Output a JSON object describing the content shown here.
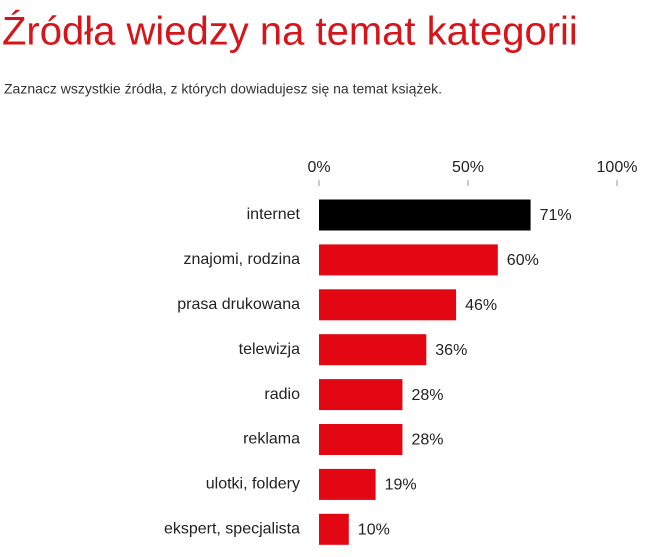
{
  "chart_data": {
    "type": "barh",
    "title": "Źródła wiedzy na temat kategorii",
    "subtitle": "Zaznacz wszystkie źródła, z których dowiadujesz się na temat książek.",
    "categories": [
      "internet",
      "znajomi, rodzina",
      "prasa drukowana",
      "telewizja",
      "radio",
      "reklama",
      "ulotki, foldery",
      "ekspert, specjalista"
    ],
    "values": [
      71,
      60,
      46,
      36,
      28,
      28,
      19,
      10
    ],
    "value_labels": [
      "71%",
      "60%",
      "46%",
      "36%",
      "28%",
      "28%",
      "19%",
      "10%"
    ],
    "colors": [
      "#000000",
      "#e30613",
      "#e30613",
      "#e30613",
      "#e30613",
      "#e30613",
      "#e30613",
      "#e30613"
    ],
    "xlim": [
      0,
      100
    ],
    "xticks": [
      {
        "value": 0,
        "label": "0%"
      },
      {
        "value": 50,
        "label": "50%"
      },
      {
        "value": 100,
        "label": "100%"
      }
    ]
  }
}
